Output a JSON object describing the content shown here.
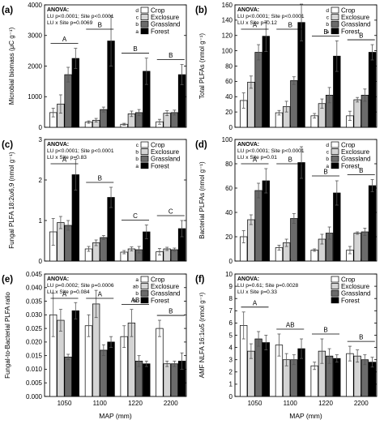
{
  "figure": {
    "x_tick_labels": [
      "1050",
      "1100",
      "1220",
      "2200"
    ],
    "x_axis_label": "MAP (mm)",
    "legend_labels": [
      "Crop",
      "Exclosure",
      "Grassland",
      "Forest"
    ],
    "series_colors": [
      "#ffffff",
      "#d4d4d4",
      "#6b6b6b",
      "#000000"
    ]
  },
  "chart_data": [
    {
      "type": "bar",
      "panel": "(a)",
      "ylabel": "Microbial biomass (μC g⁻¹)",
      "ylim": [
        0,
        4000
      ],
      "yticks": [
        "0",
        "1000",
        "2000",
        "3000",
        "4000"
      ],
      "categories": [
        "1050",
        "1100",
        "1220",
        "2200"
      ],
      "anova": [
        "ANOVA:",
        "LU p<0.0001; Site p<0.0001",
        "LU x Site p=0.0069"
      ],
      "legend_letters": [
        "d",
        "c",
        "b",
        "a"
      ],
      "group_letters": [
        "A",
        "B",
        "B",
        "B"
      ],
      "series": [
        {
          "name": "Crop",
          "values": [
            480,
            170,
            100,
            180
          ],
          "err": [
            140,
            40,
            30,
            80
          ]
        },
        {
          "name": "Exclosure",
          "values": [
            760,
            230,
            440,
            460
          ],
          "err": [
            300,
            60,
            90,
            80
          ]
        },
        {
          "name": "Grassland",
          "values": [
            1720,
            580,
            480,
            480
          ],
          "err": [
            240,
            80,
            100,
            80
          ]
        },
        {
          "name": "Forest",
          "values": [
            2250,
            2820,
            1830,
            1720
          ],
          "err": [
            330,
            820,
            430,
            330
          ]
        }
      ]
    },
    {
      "type": "bar",
      "panel": "(b)",
      "ylabel": "Total PLFAs (nmol g⁻¹)",
      "ylim": [
        0,
        160
      ],
      "yticks": [
        "0",
        "20",
        "40",
        "60",
        "80",
        "100",
        "120",
        "140",
        "160"
      ],
      "categories": [
        "1050",
        "1100",
        "1220",
        "2200"
      ],
      "anova": [
        "ANOVA:",
        "LU p<0.0001; Site p<0.0001",
        "LU x Site p=0.12"
      ],
      "legend_letters": [
        "d",
        "c",
        "b",
        "a"
      ],
      "group_letters": [
        "A",
        "B",
        "B",
        "B"
      ],
      "series": [
        {
          "name": "Crop",
          "values": [
            35,
            19,
            15,
            15
          ],
          "err": [
            10,
            3,
            3,
            6
          ]
        },
        {
          "name": "Exclosure",
          "values": [
            59,
            27,
            31,
            36
          ],
          "err": [
            8,
            7,
            6,
            3
          ]
        },
        {
          "name": "Grassland",
          "values": [
            98,
            61,
            42,
            42
          ],
          "err": [
            10,
            5,
            10,
            8
          ]
        },
        {
          "name": "Forest",
          "values": [
            119,
            137,
            93,
            98
          ],
          "err": [
            20,
            24,
            20,
            10
          ]
        }
      ]
    },
    {
      "type": "bar",
      "panel": "(c)",
      "ylabel": "Fungal PLFA 18:2ω6,9 (nmol g⁻¹)",
      "ylim": [
        0,
        3
      ],
      "yticks": [
        "0",
        "1",
        "2",
        "3"
      ],
      "categories": [
        "1050",
        "1100",
        "1220",
        "2200"
      ],
      "anova": [
        "ANOVA:",
        "LU p<0.0001; Site p<0.0001",
        "LU x Site p=0.83"
      ],
      "legend_letters": [
        "c",
        "b",
        "b",
        "a"
      ],
      "group_letters": [
        "A",
        "B",
        "C",
        "C"
      ],
      "series": [
        {
          "name": "Crop",
          "values": [
            0.72,
            0.3,
            0.22,
            0.23
          ],
          "err": [
            0.33,
            0.06,
            0.04,
            0.08
          ]
        },
        {
          "name": "Exclosure",
          "values": [
            0.95,
            0.45,
            0.3,
            0.3
          ],
          "err": [
            0.15,
            0.07,
            0.05,
            0.04
          ]
        },
        {
          "name": "Grassland",
          "values": [
            0.88,
            0.58,
            0.28,
            0.28
          ],
          "err": [
            0.12,
            0.05,
            0.08,
            0.04
          ]
        },
        {
          "name": "Forest",
          "values": [
            2.13,
            1.57,
            0.72,
            0.8
          ],
          "err": [
            0.38,
            0.25,
            0.17,
            0.2
          ]
        }
      ]
    },
    {
      "type": "bar",
      "panel": "(d)",
      "ylabel": "Bacterial PLFAs (nmol g⁻¹)",
      "ylim": [
        0,
        100
      ],
      "yticks": [
        "0",
        "20",
        "40",
        "60",
        "80",
        "100"
      ],
      "categories": [
        "1050",
        "1100",
        "1220",
        "2200"
      ],
      "anova": [
        "ANOVA:",
        "LU p<0.0001; Site p<0.0001",
        "LU x Site p=0.01"
      ],
      "legend_letters": [
        "d",
        "c",
        "b",
        "a"
      ],
      "group_letters": [
        "A",
        "B",
        "B",
        "B"
      ],
      "series": [
        {
          "name": "Crop",
          "values": [
            20,
            11,
            9,
            9
          ],
          "err": [
            5,
            2,
            1,
            3
          ]
        },
        {
          "name": "Exclosure",
          "values": [
            34,
            15,
            18,
            23
          ],
          "err": [
            4,
            3,
            4,
            1
          ]
        },
        {
          "name": "Grassland",
          "values": [
            58,
            35,
            23,
            24
          ],
          "err": [
            6,
            4,
            5,
            3
          ]
        },
        {
          "name": "Forest",
          "values": [
            66,
            81,
            56,
            62
          ],
          "err": [
            10,
            13,
            10,
            5
          ]
        }
      ]
    },
    {
      "type": "bar",
      "panel": "(e)",
      "ylabel": "Fungal-to-Bacterial PLFA ratio",
      "ylim": [
        0,
        0.045
      ],
      "yticks": [
        "0.000",
        "0.005",
        "0.010",
        "0.015",
        "0.020",
        "0.025",
        "0.030",
        "0.035",
        "0.040",
        "0.045"
      ],
      "categories": [
        "1050",
        "1100",
        "1220",
        "2200"
      ],
      "anova": [
        "ANOVA:",
        "LU p=0.0002; Site p=0.0006",
        "LU x Site p=0.084"
      ],
      "legend_letters": [
        "a",
        "ab",
        "b",
        "bc"
      ],
      "group_letters": [
        "A",
        "A",
        "AB",
        "B"
      ],
      "series": [
        {
          "name": "Crop",
          "values": [
            0.03,
            0.026,
            0.022,
            0.025
          ],
          "err": [
            0.008,
            0.004,
            0.004,
            0.003
          ]
        },
        {
          "name": "Exclosure",
          "values": [
            0.028,
            0.034,
            0.027,
            0.012
          ],
          "err": [
            0.004,
            0.005,
            0.005,
            0.001
          ]
        },
        {
          "name": "Grassland",
          "values": [
            0.0145,
            0.017,
            0.013,
            0.012
          ],
          "err": [
            0.001,
            0.002,
            0.002,
            0.001
          ]
        },
        {
          "name": "Forest",
          "values": [
            0.0315,
            0.02,
            0.012,
            0.013
          ],
          "err": [
            0.003,
            0.002,
            0.001,
            0.003
          ]
        }
      ]
    },
    {
      "type": "bar",
      "panel": "(f)",
      "ylabel": "AMF NLFA 16:1ω5 (nmol g⁻¹)",
      "ylim": [
        0,
        10
      ],
      "yticks": [
        "0",
        "1",
        "2",
        "3",
        "4",
        "5",
        "6",
        "7",
        "8",
        "9",
        "10"
      ],
      "categories": [
        "1050",
        "1100",
        "1220",
        "2200"
      ],
      "anova": [
        "ANOVA:",
        "LU p=0.61; Site p=0.0028",
        "LU x Site p=0.33"
      ],
      "legend_letters": [
        "",
        "",
        "",
        ""
      ],
      "group_letters": [
        "A",
        "AB",
        "B",
        "B"
      ],
      "series": [
        {
          "name": "Crop",
          "values": [
            5.8,
            4.2,
            2.5,
            3.5
          ],
          "err": [
            1.1,
            0.9,
            0.3,
            0.6
          ]
        },
        {
          "name": "Exclosure",
          "values": [
            3.7,
            3.0,
            3.7,
            3.3
          ],
          "err": [
            0.6,
            0.5,
            1.0,
            0.5
          ]
        },
        {
          "name": "Grassland",
          "values": [
            4.7,
            3.0,
            3.3,
            3.0
          ],
          "err": [
            0.6,
            0.4,
            0.6,
            0.4
          ]
        },
        {
          "name": "Forest",
          "values": [
            4.4,
            3.9,
            3.1,
            2.8
          ],
          "err": [
            0.6,
            0.8,
            0.3,
            0.4
          ]
        }
      ]
    }
  ]
}
